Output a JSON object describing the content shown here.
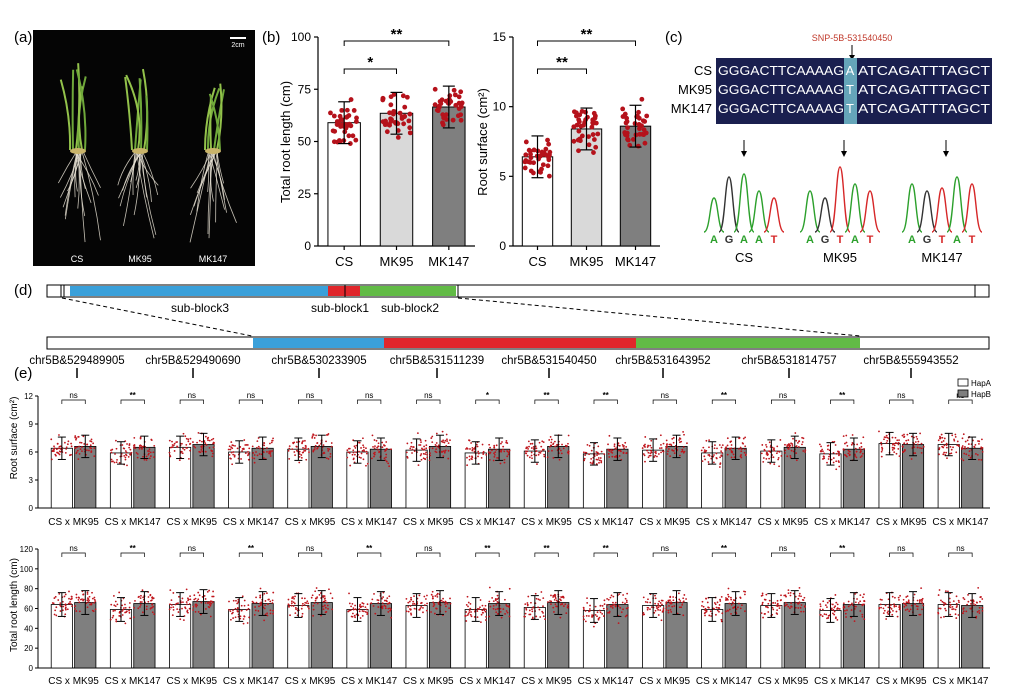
{
  "panel_labels": {
    "a": "(a)",
    "b": "(b)",
    "c": "(c)",
    "d": "(d)",
    "e": "(e)"
  },
  "photo": {
    "scale_bar": "2cm",
    "labels": [
      "CS",
      "MK95",
      "MK147"
    ]
  },
  "panel_b": {
    "left": {
      "ylabel": "Total root length (cm)",
      "ylim": [
        0,
        100
      ],
      "yticks": [
        "0",
        "25",
        "50",
        "75",
        "100"
      ],
      "categories": [
        "CS",
        "MK95",
        "MK147"
      ],
      "values": [
        59,
        63.5,
        66.5
      ],
      "sig": [
        {
          "pair": [
            0,
            1
          ],
          "label": "*"
        },
        {
          "pair": [
            0,
            2
          ],
          "label": "**"
        }
      ]
    },
    "right": {
      "ylabel": "Root surface (cm²)",
      "ylim": [
        0,
        15
      ],
      "yticks": [
        "0",
        "5",
        "10",
        "15"
      ],
      "categories": [
        "CS",
        "MK95",
        "MK147"
      ],
      "values": [
        6.4,
        8.4,
        8.6
      ],
      "sig": [
        {
          "pair": [
            0,
            1
          ],
          "label": "**"
        },
        {
          "pair": [
            0,
            2
          ],
          "label": "**"
        }
      ]
    },
    "bar_colors": [
      "#ffffff",
      "#d9d9d9",
      "#7f7f7f"
    ],
    "dot_color": "#b5121b"
  },
  "panel_c": {
    "snp_label": "SNP-5B-531540450",
    "rows": [
      {
        "name": "CS",
        "left": "GGGACTTCAAAAG",
        "snp": "A",
        "right": "ATCAGATTTAGCT"
      },
      {
        "name": "MK95",
        "left": "GGGACTTCAAAAG",
        "snp": "T",
        "right": "ATCAGATTTAGCT"
      },
      {
        "name": "MK147",
        "left": "GGGACTTCAAAAG",
        "snp": "T",
        "right": "ATCAGATTTAGCT"
      }
    ],
    "chromatograms": [
      {
        "name": "CS",
        "bases": [
          "A",
          "G",
          "A",
          "A",
          "T"
        ]
      },
      {
        "name": "MK95",
        "bases": [
          "A",
          "G",
          "T",
          "A",
          "T"
        ]
      },
      {
        "name": "MK147",
        "bases": [
          "A",
          "G",
          "T",
          "A",
          "T"
        ]
      }
    ],
    "base_colors": {
      "A": "#2ca02c",
      "G": "#333333",
      "T": "#d62728",
      "C": "#1f4fd1"
    }
  },
  "panel_d": {
    "blocks": [
      "sub-block3",
      "sub-block1",
      "sub-block2"
    ],
    "block_colors": {
      "sub-block3": "#3aa0da",
      "sub-block1": "#e0262b",
      "sub-block2": "#62bb46"
    },
    "markers": [
      "chr5B&529489905",
      "chr5B&529490690",
      "chr5B&530233905",
      "chr5B&531511239",
      "chr5B&531540450",
      "chr5B&531643952",
      "chr5B&531814757",
      "chr5B&555943552"
    ]
  },
  "panel_e": {
    "legend": [
      "HapA",
      "HapB"
    ],
    "legend_colors": [
      "#ffffff",
      "#7f7f7f"
    ],
    "group_labels": [
      "CS x MK95",
      "CS x MK147"
    ],
    "top": {
      "ylabel": "Root surface (cm²)",
      "ylim": [
        0,
        12
      ],
      "yticks": [
        "0",
        "3",
        "6",
        "9",
        "12"
      ],
      "sig": [
        "ns",
        "**",
        "ns",
        "ns",
        "ns",
        "ns",
        "ns",
        "*",
        "**",
        "**",
        "ns",
        "**",
        "ns",
        "**",
        "ns",
        "ns"
      ],
      "hapA": [
        6.4,
        5.9,
        6.5,
        6.0,
        6.3,
        6.0,
        6.2,
        5.9,
        6.1,
        5.8,
        6.2,
        5.9,
        6.1,
        5.8,
        6.9,
        6.8
      ],
      "hapB": [
        6.6,
        6.5,
        6.8,
        6.4,
        6.6,
        6.3,
        6.6,
        6.3,
        6.6,
        6.3,
        6.6,
        6.4,
        6.5,
        6.3,
        6.8,
        6.4
      ]
    },
    "bottom": {
      "ylabel": "Total root length (cm)",
      "ylim": [
        0,
        120
      ],
      "yticks": [
        "0",
        "20",
        "40",
        "60",
        "80",
        "100",
        "120"
      ],
      "sig": [
        "ns",
        "**",
        "ns",
        "**",
        "ns",
        "**",
        "ns",
        "**",
        "**",
        "**",
        "ns",
        "**",
        "ns",
        "**",
        "ns",
        "ns"
      ],
      "hapA": [
        64,
        59,
        64,
        59,
        63,
        59,
        63,
        59,
        61,
        58,
        63,
        59,
        63,
        58,
        64,
        64
      ],
      "hapB": [
        66,
        65,
        67,
        65,
        66,
        65,
        66,
        65,
        66,
        64,
        66,
        65,
        66,
        64,
        65,
        63
      ]
    }
  }
}
